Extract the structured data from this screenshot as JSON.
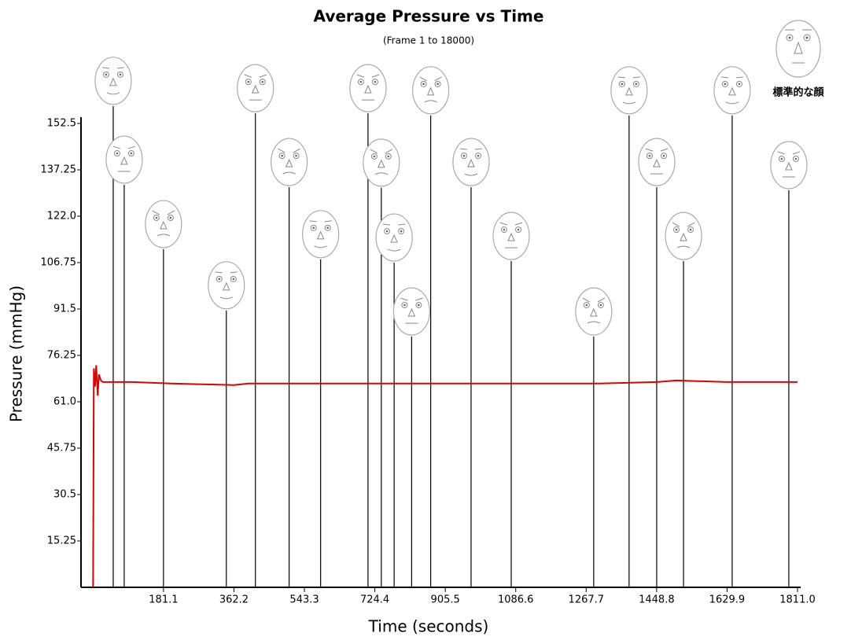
{
  "chart_data": {
    "type": "line",
    "title": "Average Pressure vs Time",
    "subtitle": "(Frame 1 to 18000)",
    "x_label": "Time (seconds)",
    "y_label": "Pressure (mmHg)",
    "standard_face_label": "標準的な顔",
    "xlim": [
      -31,
      1811
    ],
    "ylim": [
      0,
      152.5
    ],
    "xticks": [
      181.1,
      362.2,
      543.3,
      724.4,
      905.5,
      1086.6,
      1267.7,
      1448.8,
      1629.9,
      {
        "value": 1811,
        "label": "1811.0"
      }
    ],
    "yticks": [
      15.25,
      30.5,
      45.75,
      {
        "value": 61,
        "label": "61.0"
      },
      76.25,
      91.5,
      106.75,
      {
        "value": 122,
        "label": "122.0"
      },
      137.25,
      152.5
    ],
    "series": [
      {
        "name": "Average Pressure",
        "color": "#e00000",
        "x": [
          0,
          2,
          5,
          8,
          12,
          15,
          20,
          25,
          40,
          100,
          200,
          362,
          400,
          543,
          700,
          905,
          1100,
          1300,
          1450,
          1500,
          1629,
          1811
        ],
        "values": [
          0,
          72,
          66,
          73,
          63,
          70,
          68,
          67.5,
          67.5,
          67.5,
          67,
          66.5,
          67,
          67,
          67,
          67,
          67,
          67,
          67.5,
          68,
          67.5,
          67.5
        ]
      }
    ],
    "events": {
      "x": [
        51.8,
        80,
        181,
        342.6,
        417.3,
        504,
        585,
        706.8,
        741,
        774,
        819,
        868,
        971.8,
        1075,
        1287,
        1378,
        1449,
        1517.9,
        1643,
        1788.6
      ],
      "face_level": [
        166.5,
        140.6,
        119.4,
        99.3,
        164.1,
        139.8,
        116.1,
        164.1,
        139.6,
        115,
        90.7,
        163.4,
        139.8,
        115.5,
        90.7,
        163.4,
        139.8,
        115.5,
        163.4,
        138.8
      ]
    }
  }
}
